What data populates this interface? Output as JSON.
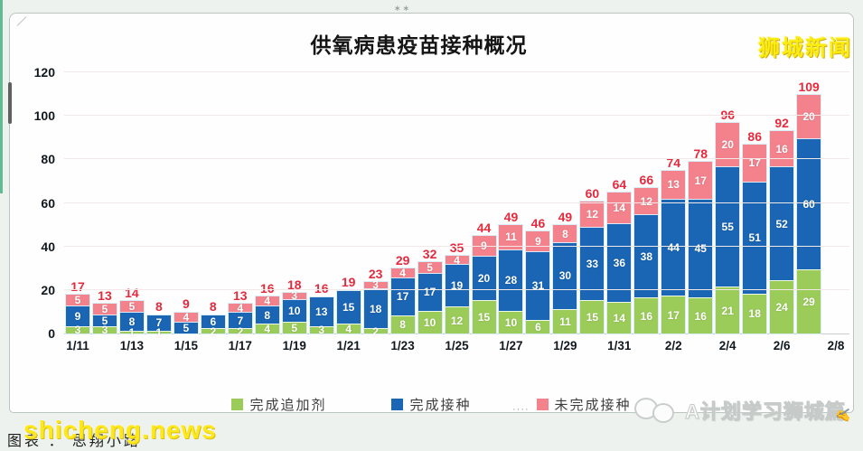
{
  "window": {
    "top_dots": "∗∗",
    "bottom_dots": "····"
  },
  "chart_data": {
    "type": "bar",
    "stacked": true,
    "title": "供氧病患疫苗接种概况",
    "categories": [
      "1/11",
      "1/12",
      "1/13",
      "1/14",
      "1/15",
      "1/16",
      "1/17",
      "1/18",
      "1/19",
      "1/20",
      "1/21",
      "1/22",
      "1/23",
      "1/24",
      "1/25",
      "1/26",
      "1/27",
      "1/28",
      "1/29",
      "1/30",
      "1/31",
      "2/1",
      "2/2",
      "2/3",
      "2/4",
      "2/5",
      "2/6",
      "2/7"
    ],
    "x_tick_labels": [
      "1/11",
      "1/13",
      "1/15",
      "1/17",
      "1/19",
      "1/21",
      "1/23",
      "1/25",
      "1/27",
      "1/29",
      "1/31",
      "2/2",
      "2/4",
      "2/6",
      "2/8"
    ],
    "series": [
      {
        "name": "完成追加剂",
        "color": "#9bcc5a",
        "values": [
          3,
          3,
          1,
          1,
          0,
          2,
          2,
          4,
          5,
          3,
          4,
          2,
          8,
          10,
          12,
          15,
          10,
          6,
          11,
          15,
          14,
          16,
          17,
          16,
          21,
          18,
          24,
          29
        ]
      },
      {
        "name": "完成接种",
        "color": "#1a65b4",
        "values": [
          9,
          5,
          8,
          7,
          5,
          6,
          7,
          8,
          10,
          13,
          15,
          18,
          17,
          17,
          19,
          20,
          28,
          31,
          30,
          33,
          36,
          38,
          44,
          45,
          55,
          51,
          52,
          60
        ]
      },
      {
        "name": "未完成接种",
        "color": "#f3828c",
        "values": [
          5,
          5,
          5,
          0,
          4,
          0,
          4,
          4,
          3,
          0,
          0,
          3,
          4,
          5,
          4,
          9,
          11,
          9,
          8,
          12,
          14,
          12,
          13,
          17,
          20,
          17,
          16,
          20
        ]
      }
    ],
    "totals": [
      17,
      13,
      14,
      8,
      9,
      8,
      13,
      16,
      18,
      16,
      19,
      23,
      29,
      32,
      35,
      44,
      49,
      46,
      49,
      60,
      64,
      66,
      74,
      78,
      96,
      86,
      92,
      109
    ],
    "totals_color": "#e42a3d",
    "ylim": [
      0,
      120
    ],
    "y_ticks": [
      0,
      20,
      40,
      60,
      80,
      100,
      120
    ],
    "grid": true,
    "legend_position": "bottom"
  },
  "legend": {
    "items": [
      {
        "label": "完成追加剂",
        "color": "#9bcc5a"
      },
      {
        "label": "完成接种",
        "color": "#1a65b4"
      },
      {
        "label": "未完成接种",
        "color": "#f3828c"
      }
    ]
  },
  "watermarks": {
    "top_right": "狮城新闻",
    "bottom_left_yellow": "shicheng.news",
    "bottom_left_black": "图表 ： 思翔小路",
    "bottom_right": "A计划学习狮城篇"
  }
}
